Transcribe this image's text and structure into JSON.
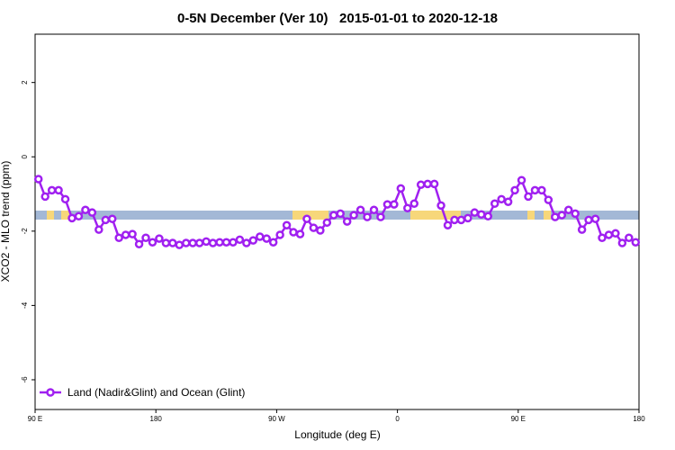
{
  "chart_data": {
    "type": "line",
    "title": "0-5N December (Ver 10)   2015-01-01 to 2020-12-18",
    "xlabel": "Longitude (deg E)",
    "ylabel": "XCO2 - MLO trend (ppm)",
    "xlim": [
      90,
      540
    ],
    "ylim": [
      -6.8,
      3.3
    ],
    "xticks": [
      {
        "value": 90,
        "label": "90 E"
      },
      180,
      {
        "value": 270,
        "label": "90 W"
      },
      {
        "value": 360,
        "label": "0"
      },
      {
        "value": 450,
        "label": "90 E"
      },
      {
        "value": 540,
        "label": "180"
      }
    ],
    "yticks": [
      -6,
      -4,
      -2,
      0,
      2
    ],
    "legend": "bottom-left",
    "x": [
      92.5,
      97.5,
      102.5,
      107.5,
      112.5,
      117.5,
      122.5,
      127.5,
      132.5,
      137.5,
      142.5,
      147.5,
      152.5,
      157.5,
      162.5,
      167.5,
      172.5,
      177.5,
      182.5,
      187.5,
      192.5,
      197.5,
      202.5,
      207.5,
      212.5,
      217.5,
      222.5,
      227.5,
      232.5,
      237.5,
      242.5,
      247.5,
      252.5,
      257.5,
      262.5,
      267.5,
      272.5,
      277.5,
      282.5,
      287.5,
      292.5,
      297.5,
      302.5,
      307.5,
      312.5,
      317.5,
      322.5,
      327.5,
      332.5,
      337.5,
      342.5,
      347.5,
      352.5,
      357.5,
      362.5,
      367.5,
      372.5,
      377.5,
      382.5,
      387.5,
      392.5,
      397.5,
      402.5,
      407.5,
      412.5,
      417.5,
      422.5,
      427.5,
      432.5,
      437.5,
      442.5,
      447.5,
      452.5,
      457.5,
      462.5,
      467.5,
      472.5,
      477.5,
      482.5,
      487.5,
      492.5,
      497.5,
      502.5,
      507.5,
      512.5,
      517.5,
      522.5,
      527.5,
      532.5,
      537.5
    ],
    "series": [
      {
        "name": "Land (Nadir&Glint) and Ocean (Glint)",
        "color": "#a020f0",
        "values": [
          -0.6,
          -1.07,
          -0.9,
          -0.9,
          -1.14,
          -1.65,
          -1.6,
          -1.43,
          -1.5,
          -1.96,
          -1.7,
          -1.67,
          -2.18,
          -2.1,
          -2.08,
          -2.35,
          -2.18,
          -2.3,
          -2.2,
          -2.32,
          -2.32,
          -2.37,
          -2.32,
          -2.32,
          -2.32,
          -2.28,
          -2.32,
          -2.3,
          -2.3,
          -2.3,
          -2.23,
          -2.32,
          -2.25,
          -2.15,
          -2.2,
          -2.3,
          -2.1,
          -1.84,
          -2.03,
          -2.08,
          -1.67,
          -1.91,
          -1.98,
          -1.77,
          -1.57,
          -1.53,
          -1.74,
          -1.57,
          -1.43,
          -1.62,
          -1.43,
          -1.62,
          -1.28,
          -1.28,
          -0.85,
          -1.38,
          -1.26,
          -0.75,
          -0.73,
          -0.73,
          -1.31,
          -1.84,
          -1.7,
          -1.7,
          -1.65,
          -1.5,
          -1.55,
          -1.6,
          -1.26,
          -1.14,
          -1.21,
          -0.9,
          -0.63,
          -1.07,
          -0.9,
          -0.9,
          -1.16,
          -1.62,
          -1.57,
          -1.43,
          -1.53,
          -1.96,
          -1.7,
          -1.67,
          -2.18,
          -2.1,
          -2.06,
          -2.32,
          -2.18,
          -2.3
        ]
      }
    ]
  }
}
